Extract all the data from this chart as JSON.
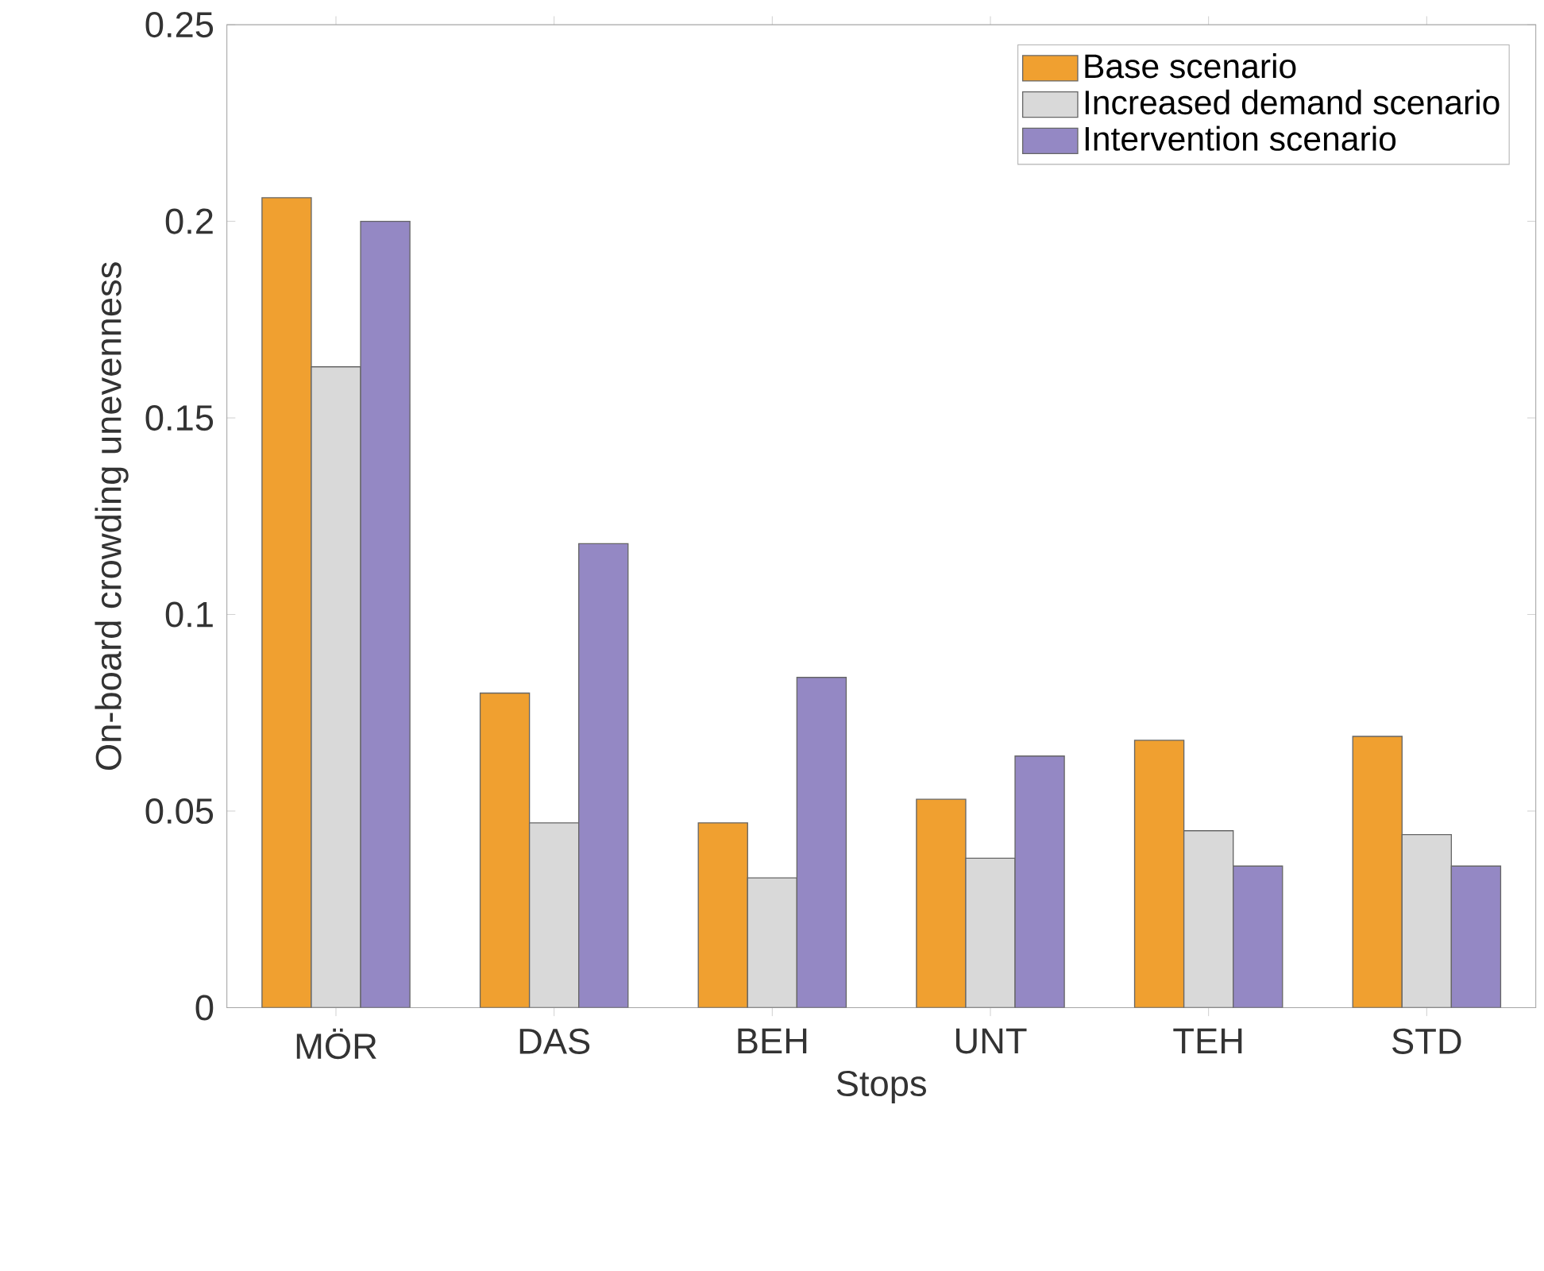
{
  "chart_data": {
    "type": "bar",
    "xlabel": "Stops",
    "ylabel": "On-board crowding unevenness",
    "categories": [
      "MÖR",
      "DAS",
      "BEH",
      "UNT",
      "TEH",
      "STD"
    ],
    "series": [
      {
        "name": "Base scenario",
        "color": "#f0a030",
        "values": [
          0.206,
          0.08,
          0.047,
          0.053,
          0.068,
          0.069
        ]
      },
      {
        "name": "Increased demand scenario",
        "color": "#d9d9d9",
        "values": [
          0.163,
          0.047,
          0.033,
          0.038,
          0.045,
          0.044
        ]
      },
      {
        "name": "Intervention scenario",
        "color": "#9488c4",
        "values": [
          0.2,
          0.118,
          0.084,
          0.064,
          0.036,
          0.036
        ]
      }
    ],
    "ylim": [
      0,
      0.25
    ],
    "yticks": [
      0,
      0.05,
      0.1,
      0.15,
      0.2,
      0.25
    ],
    "grid": false,
    "legend": "top right"
  }
}
